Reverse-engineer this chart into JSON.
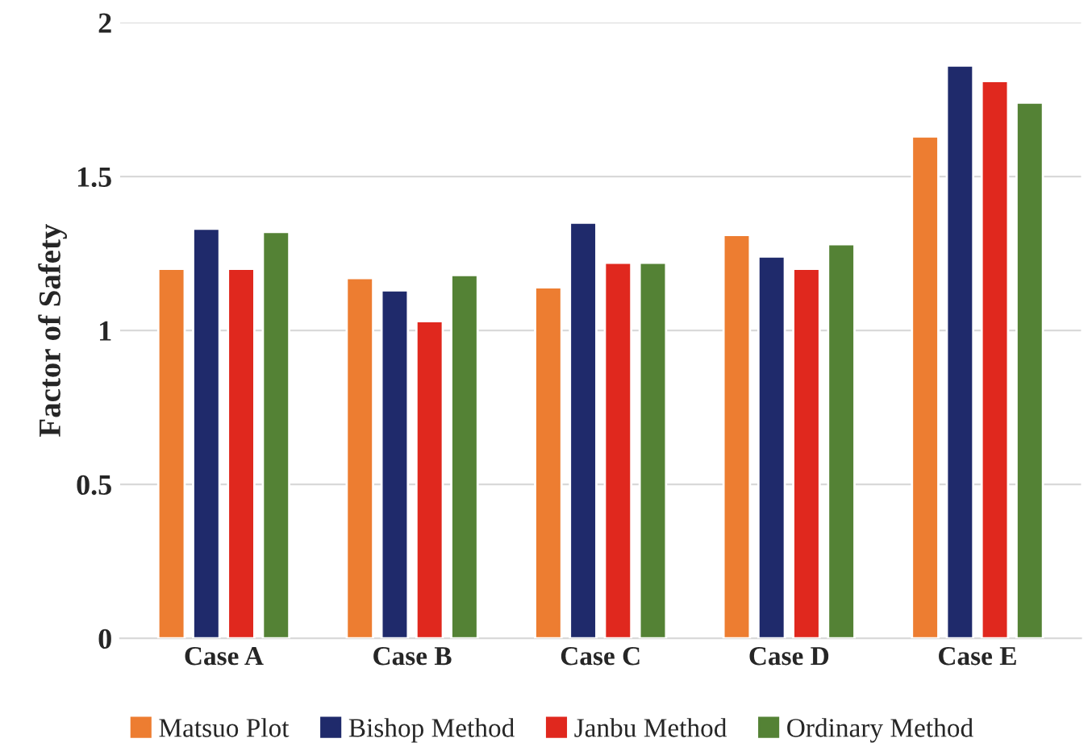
{
  "chart_data": {
    "type": "bar",
    "ylabel": "Factor of Safety",
    "categories": [
      "Case A",
      "Case B",
      "Case C",
      "Case D",
      "Case E"
    ],
    "series": [
      {
        "name": "Matsuo Plot",
        "color": "#ed7d31",
        "values": [
          1.2,
          1.17,
          1.14,
          1.31,
          1.63
        ]
      },
      {
        "name": "Bishop Method",
        "color": "#1f2a6b",
        "values": [
          1.33,
          1.13,
          1.35,
          1.24,
          1.86
        ]
      },
      {
        "name": "Janbu Method",
        "color": "#e0281e",
        "values": [
          1.2,
          1.03,
          1.22,
          1.2,
          1.81
        ]
      },
      {
        "name": "Ordinary Method",
        "color": "#548235",
        "values": [
          1.32,
          1.18,
          1.22,
          1.28,
          1.74
        ]
      }
    ],
    "ylim": [
      0,
      2
    ],
    "yticks": [
      0,
      0.5,
      1,
      1.5,
      2
    ],
    "grid": "y",
    "legend": "bottom"
  }
}
